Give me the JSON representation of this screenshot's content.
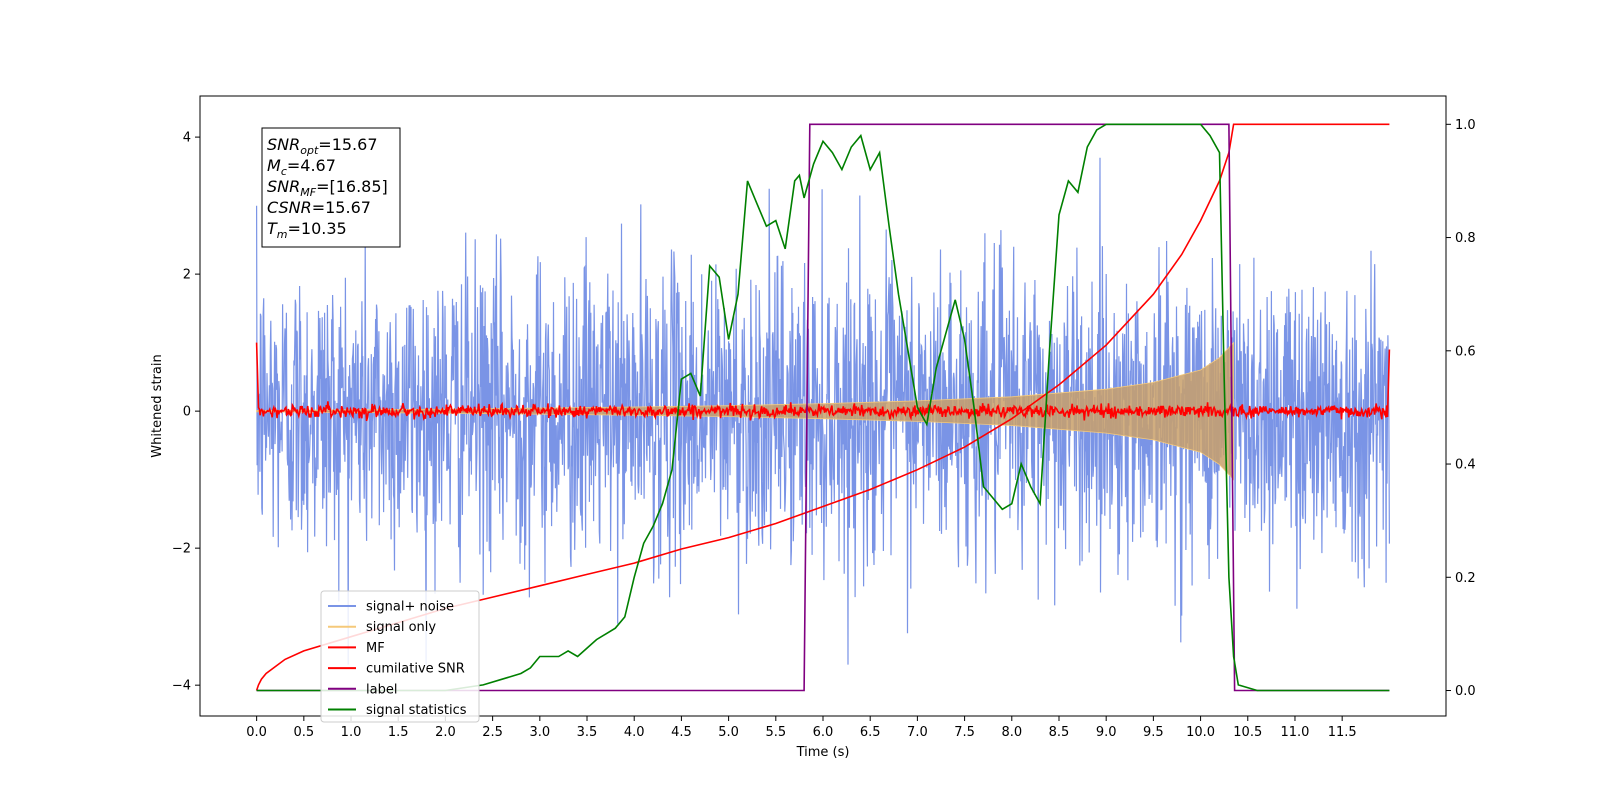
{
  "chart_data": {
    "type": "line",
    "xlabel": "Time (s)",
    "ylabel_left": "Whitened strain",
    "ylabel_right": "",
    "xlim": [
      -0.6,
      12.6
    ],
    "ylim_left": [
      -4.45,
      4.6
    ],
    "ylim_right": [
      -0.045,
      1.05
    ],
    "x_ticks": [
      0.0,
      0.5,
      1.0,
      1.5,
      2.0,
      2.5,
      3.0,
      3.5,
      4.0,
      4.5,
      5.0,
      5.5,
      6.0,
      6.5,
      7.0,
      7.5,
      8.0,
      8.5,
      9.0,
      9.5,
      10.0,
      10.5,
      11.0,
      11.5
    ],
    "x_tick_labels": [
      "0.0",
      "0.5",
      "1.0",
      "1.5",
      "2.0",
      "2.5",
      "3.0",
      "3.5",
      "4.0",
      "4.5",
      "5.0",
      "5.5",
      "6.0",
      "6.5",
      "7.0",
      "7.5",
      "8.0",
      "8.5",
      "9.0",
      "9.5",
      "10.0",
      "10.5",
      "11.0",
      "11.5"
    ],
    "y_ticks_left": [
      -4,
      -2,
      0,
      2,
      4
    ],
    "y_tick_labels_left": [
      "−4",
      "−2",
      "0",
      "2",
      "4"
    ],
    "y_ticks_right": [
      0.0,
      0.2,
      0.4,
      0.6,
      0.8,
      1.0
    ],
    "y_tick_labels_right": [
      "0.0",
      "0.2",
      "0.4",
      "0.6",
      "0.8",
      "1.0"
    ],
    "grid": false,
    "legend_position": "lower-left",
    "info_box": {
      "lines": [
        {
          "name": "SNR",
          "sub": "opt",
          "value": "=15.67"
        },
        {
          "name": "M",
          "sub": "c",
          "value": "=4.67"
        },
        {
          "name": "SNR",
          "sub": "MF",
          "value": "=[16.85]"
        },
        {
          "name": "CSNR",
          "sub": "",
          "value": "=15.67"
        },
        {
          "name": "T",
          "sub": "m",
          "value": "=10.35"
        }
      ]
    },
    "series": [
      {
        "name": "signal+ noise",
        "axis": "left",
        "color": "#7a94e6",
        "description_stats": {
          "x_start": 0.0,
          "x_end": 12.0,
          "typical_amplitude": 1.5,
          "peak_amplitude": 3.7
        }
      },
      {
        "name": "signal only",
        "axis": "left",
        "color": "#f5c97a",
        "envelope_x": [
          0.0,
          2.0,
          4.0,
          5.0,
          6.0,
          7.0,
          8.0,
          9.0,
          9.5,
          10.0,
          10.2,
          10.35
        ],
        "envelope_y": [
          0.01,
          0.03,
          0.06,
          0.08,
          0.11,
          0.15,
          0.21,
          0.32,
          0.42,
          0.6,
          0.78,
          1.0
        ]
      },
      {
        "name": "MF",
        "axis": "left",
        "color": "#ff0000",
        "description_stats": {
          "start_value": 1.0,
          "baseline": 0.0,
          "jitter": 0.09,
          "end_value": 0.9
        }
      },
      {
        "name": "cumilative SNR",
        "axis": "right",
        "color": "#ff0000",
        "x": [
          0.0,
          0.02,
          0.05,
          0.1,
          0.3,
          0.5,
          1.0,
          1.5,
          2.0,
          2.5,
          3.0,
          3.5,
          4.0,
          4.5,
          5.0,
          5.5,
          6.0,
          6.5,
          7.0,
          7.5,
          8.0,
          8.5,
          9.0,
          9.5,
          9.8,
          10.0,
          10.2,
          10.3,
          10.35,
          12.0
        ],
        "y": [
          0.0,
          0.01,
          0.02,
          0.03,
          0.055,
          0.07,
          0.095,
          0.12,
          0.145,
          0.165,
          0.185,
          0.205,
          0.225,
          0.25,
          0.27,
          0.295,
          0.325,
          0.355,
          0.39,
          0.43,
          0.48,
          0.54,
          0.61,
          0.7,
          0.77,
          0.83,
          0.9,
          0.95,
          1.0,
          1.0
        ]
      },
      {
        "name": "label",
        "axis": "right",
        "color": "#800080",
        "x": [
          0.0,
          5.8,
          5.86,
          10.3,
          10.36,
          12.0
        ],
        "y": [
          0.0,
          0.0,
          1.0,
          1.0,
          0.0,
          0.0
        ]
      },
      {
        "name": "signal statistics",
        "axis": "right",
        "color": "#008000",
        "x": [
          0.0,
          1.0,
          2.0,
          2.4,
          2.6,
          2.8,
          2.9,
          3.0,
          3.1,
          3.2,
          3.3,
          3.4,
          3.5,
          3.6,
          3.7,
          3.8,
          3.9,
          4.0,
          4.1,
          4.2,
          4.3,
          4.4,
          4.5,
          4.6,
          4.7,
          4.8,
          4.9,
          5.0,
          5.1,
          5.2,
          5.3,
          5.4,
          5.5,
          5.6,
          5.7,
          5.75,
          5.8,
          5.9,
          6.0,
          6.1,
          6.2,
          6.3,
          6.4,
          6.5,
          6.6,
          6.7,
          6.8,
          6.9,
          7.0,
          7.1,
          7.2,
          7.3,
          7.4,
          7.5,
          7.6,
          7.7,
          7.8,
          7.9,
          8.0,
          8.1,
          8.2,
          8.3,
          8.4,
          8.5,
          8.6,
          8.7,
          8.8,
          8.9,
          9.0,
          9.1,
          9.2,
          9.3,
          9.4,
          9.5,
          9.6,
          9.7,
          9.8,
          9.9,
          10.0,
          10.1,
          10.2,
          10.25,
          10.3,
          10.35,
          10.4,
          10.6,
          11.0,
          11.5,
          12.0
        ],
        "y": [
          0.0,
          0.0,
          0.0,
          0.01,
          0.02,
          0.03,
          0.04,
          0.06,
          0.06,
          0.06,
          0.07,
          0.06,
          0.075,
          0.09,
          0.1,
          0.11,
          0.13,
          0.2,
          0.26,
          0.29,
          0.33,
          0.39,
          0.55,
          0.56,
          0.52,
          0.75,
          0.73,
          0.62,
          0.7,
          0.9,
          0.86,
          0.82,
          0.83,
          0.78,
          0.9,
          0.91,
          0.87,
          0.93,
          0.97,
          0.95,
          0.92,
          0.96,
          0.98,
          0.92,
          0.95,
          0.82,
          0.7,
          0.6,
          0.5,
          0.47,
          0.57,
          0.63,
          0.69,
          0.62,
          0.5,
          0.36,
          0.34,
          0.32,
          0.33,
          0.4,
          0.36,
          0.33,
          0.6,
          0.84,
          0.9,
          0.88,
          0.96,
          0.99,
          1.0,
          1.0,
          1.0,
          1.0,
          1.0,
          1.0,
          1.0,
          1.0,
          1.0,
          1.0,
          1.0,
          0.98,
          0.95,
          0.55,
          0.2,
          0.06,
          0.01,
          0.0,
          0.0,
          0.0,
          0.0
        ]
      }
    ]
  }
}
